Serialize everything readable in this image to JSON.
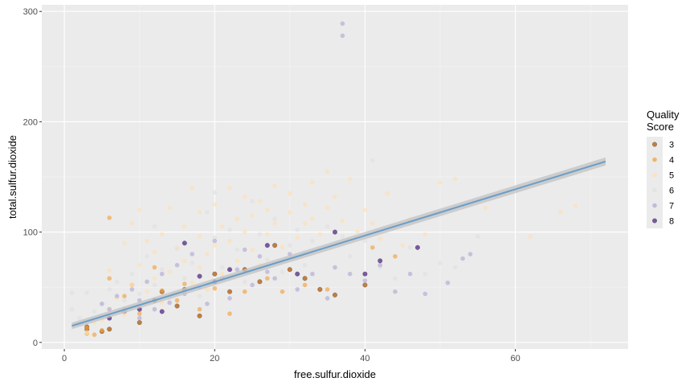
{
  "chart_data": {
    "type": "scatter",
    "xlabel": "free.sulfur.dioxide",
    "ylabel": "total.sulfur.dioxide",
    "xlim": [
      -3,
      75
    ],
    "ylim": [
      -6,
      306
    ],
    "x_ticks": [
      0,
      20,
      40,
      60
    ],
    "y_ticks": [
      0,
      100,
      200,
      300
    ],
    "grid": true,
    "legend": {
      "title_lines": [
        "Quality",
        "Score"
      ],
      "position": "right",
      "entries": [
        {
          "label": "3",
          "color": "#b35806"
        },
        {
          "label": "4",
          "color": "#f1a340"
        },
        {
          "label": "5",
          "color": "#fee0b6"
        },
        {
          "label": "6",
          "color": "#e0e0e0"
        },
        {
          "label": "7",
          "color": "#b2abd2"
        },
        {
          "label": "8",
          "color": "#542788"
        }
      ]
    },
    "series": [
      {
        "name": "3",
        "color": "#b35806",
        "points": [
          [
            3,
            12
          ],
          [
            3,
            14
          ],
          [
            5,
            10
          ],
          [
            6,
            12
          ],
          [
            8,
            28
          ],
          [
            10,
            18
          ],
          [
            12,
            38
          ],
          [
            13,
            46
          ],
          [
            15,
            33
          ],
          [
            16,
            48
          ],
          [
            18,
            24
          ],
          [
            20,
            62
          ],
          [
            22,
            46
          ],
          [
            24,
            66
          ],
          [
            26,
            55
          ],
          [
            28,
            88
          ],
          [
            30,
            66
          ],
          [
            32,
            58
          ],
          [
            34,
            48
          ],
          [
            36,
            43
          ],
          [
            40,
            52
          ]
        ]
      },
      {
        "name": "4",
        "color": "#f1a340",
        "points": [
          [
            3,
            8
          ],
          [
            3,
            13
          ],
          [
            4,
            7
          ],
          [
            5,
            11
          ],
          [
            6,
            113
          ],
          [
            6,
            58
          ],
          [
            8,
            30
          ],
          [
            8,
            42
          ],
          [
            9,
            52
          ],
          [
            10,
            26
          ],
          [
            12,
            68
          ],
          [
            13,
            47
          ],
          [
            15,
            38
          ],
          [
            16,
            53
          ],
          [
            18,
            30
          ],
          [
            20,
            49
          ],
          [
            22,
            26
          ],
          [
            24,
            46
          ],
          [
            27,
            58
          ],
          [
            29,
            46
          ],
          [
            32,
            52
          ],
          [
            35,
            48
          ],
          [
            41,
            86
          ],
          [
            44,
            78
          ]
        ]
      },
      {
        "name": "5",
        "color": "#fee0b6",
        "points": [
          [
            3,
            9
          ],
          [
            4,
            18
          ],
          [
            5,
            20
          ],
          [
            6,
            30
          ],
          [
            6,
            65
          ],
          [
            7,
            40
          ],
          [
            8,
            25
          ],
          [
            8,
            90
          ],
          [
            9,
            52
          ],
          [
            9,
            108
          ],
          [
            10,
            32
          ],
          [
            10,
            70
          ],
          [
            10,
            120
          ],
          [
            11,
            46
          ],
          [
            11,
            92
          ],
          [
            12,
            58
          ],
          [
            12,
            82
          ],
          [
            13,
            36
          ],
          [
            13,
            98
          ],
          [
            14,
            64
          ],
          [
            14,
            122
          ],
          [
            15,
            44
          ],
          [
            15,
            86
          ],
          [
            16,
            74
          ],
          [
            16,
            105
          ],
          [
            17,
            54
          ],
          [
            17,
            140
          ],
          [
            18,
            68
          ],
          [
            18,
            96
          ],
          [
            18,
            118
          ],
          [
            19,
            48
          ],
          [
            19,
            80
          ],
          [
            20,
            88
          ],
          [
            20,
            125
          ],
          [
            21,
            62
          ],
          [
            21,
            105
          ],
          [
            22,
            92
          ],
          [
            22,
            140
          ],
          [
            23,
            74
          ],
          [
            23,
            112
          ],
          [
            24,
            100
          ],
          [
            24,
            132
          ],
          [
            25,
            84
          ],
          [
            25,
            115
          ],
          [
            26,
            70
          ],
          [
            26,
            128
          ],
          [
            27,
            98
          ],
          [
            27,
            120
          ],
          [
            28,
            108
          ],
          [
            28,
            142
          ],
          [
            29,
            86
          ],
          [
            30,
            118
          ],
          [
            30,
            135
          ],
          [
            31,
            95
          ],
          [
            32,
            125
          ],
          [
            32,
            108
          ],
          [
            33,
            145
          ],
          [
            33,
            112
          ],
          [
            34,
            98
          ],
          [
            35,
            155
          ],
          [
            35,
            122
          ],
          [
            36,
            132
          ],
          [
            37,
            110
          ],
          [
            38,
            148
          ],
          [
            39,
            100
          ],
          [
            40,
            120
          ],
          [
            41,
            108
          ],
          [
            42,
            94
          ],
          [
            43,
            135
          ],
          [
            45,
            88
          ],
          [
            46,
            112
          ],
          [
            48,
            98
          ],
          [
            50,
            145
          ],
          [
            52,
            148
          ],
          [
            56,
            122
          ],
          [
            62,
            96
          ],
          [
            66,
            118
          ],
          [
            68,
            124
          ]
        ]
      },
      {
        "name": "6",
        "color": "#e0e0e0",
        "points": [
          [
            1,
            30
          ],
          [
            1,
            45
          ],
          [
            2,
            22
          ],
          [
            3,
            45
          ],
          [
            4,
            28
          ],
          [
            5,
            35
          ],
          [
            6,
            48
          ],
          [
            7,
            55
          ],
          [
            8,
            38
          ],
          [
            9,
            62
          ],
          [
            10,
            44
          ],
          [
            11,
            78
          ],
          [
            12,
            52
          ],
          [
            12,
            105
          ],
          [
            13,
            66
          ],
          [
            14,
            40
          ],
          [
            15,
            85
          ],
          [
            16,
            58
          ],
          [
            17,
            72
          ],
          [
            18,
            42
          ],
          [
            19,
            118
          ],
          [
            20,
            136
          ],
          [
            20,
            95
          ],
          [
            21,
            68
          ],
          [
            22,
            102
          ],
          [
            23,
            84
          ],
          [
            24,
            55
          ],
          [
            25,
            128
          ],
          [
            26,
            98
          ],
          [
            27,
            75
          ],
          [
            28,
            112
          ],
          [
            29,
            64
          ],
          [
            30,
            88
          ],
          [
            31,
            102
          ],
          [
            32,
            70
          ],
          [
            33,
            92
          ],
          [
            34,
            84
          ],
          [
            35,
            105
          ],
          [
            37,
            96
          ],
          [
            38,
            78
          ],
          [
            40,
            92
          ],
          [
            41,
            165
          ],
          [
            42,
            68
          ],
          [
            44,
            58
          ],
          [
            46,
            86
          ],
          [
            48,
            62
          ],
          [
            50,
            72
          ],
          [
            52,
            68
          ],
          [
            55,
            96
          ]
        ]
      },
      {
        "name": "7",
        "color": "#b2abd2",
        "points": [
          [
            5,
            35
          ],
          [
            6,
            30
          ],
          [
            7,
            42
          ],
          [
            8,
            28
          ],
          [
            9,
            48
          ],
          [
            10,
            22
          ],
          [
            10,
            38
          ],
          [
            11,
            55
          ],
          [
            12,
            30
          ],
          [
            13,
            62
          ],
          [
            14,
            36
          ],
          [
            15,
            70
          ],
          [
            16,
            44
          ],
          [
            17,
            80
          ],
          [
            18,
            50
          ],
          [
            19,
            35
          ],
          [
            20,
            92
          ],
          [
            21,
            58
          ],
          [
            22,
            40
          ],
          [
            23,
            66
          ],
          [
            24,
            84
          ],
          [
            25,
            52
          ],
          [
            26,
            78
          ],
          [
            27,
            64
          ],
          [
            28,
            58
          ],
          [
            30,
            80
          ],
          [
            31,
            48
          ],
          [
            33,
            62
          ],
          [
            35,
            40
          ],
          [
            36,
            68
          ],
          [
            37,
            278
          ],
          [
            37,
            289
          ],
          [
            38,
            62
          ],
          [
            40,
            56
          ],
          [
            42,
            70
          ],
          [
            44,
            46
          ],
          [
            46,
            62
          ],
          [
            48,
            44
          ],
          [
            51,
            54
          ],
          [
            53,
            76
          ],
          [
            54,
            80
          ]
        ]
      },
      {
        "name": "8",
        "color": "#542788",
        "points": [
          [
            6,
            22
          ],
          [
            10,
            30
          ],
          [
            13,
            28
          ],
          [
            16,
            90
          ],
          [
            18,
            60
          ],
          [
            20,
            55
          ],
          [
            22,
            66
          ],
          [
            27,
            88
          ],
          [
            31,
            62
          ],
          [
            36,
            100
          ],
          [
            40,
            62
          ],
          [
            42,
            74
          ],
          [
            47,
            86
          ]
        ]
      }
    ],
    "trend": {
      "x": [
        1,
        72
      ],
      "y": [
        15,
        164
      ],
      "color": "#6a9dc9",
      "band_color": "#c4c4c4",
      "band_width": [
        4,
        5
      ]
    }
  }
}
